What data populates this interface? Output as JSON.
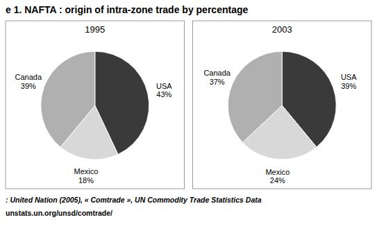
{
  "title": "e 1. NAFTA : origin of intra-zone trade by percentage",
  "chart_data": [
    {
      "type": "pie",
      "title": "1995",
      "categories": [
        "USA",
        "Mexico",
        "Canada"
      ],
      "values": [
        43,
        18,
        39
      ],
      "value_labels": [
        "43%",
        "18%",
        "39%"
      ],
      "colors": [
        "#3a3a3a",
        "#d8d8d8",
        "#b0b0b0"
      ],
      "data_labels": true
    },
    {
      "type": "pie",
      "title": "2003",
      "categories": [
        "USA",
        "Mexico",
        "Canada"
      ],
      "values": [
        39,
        24,
        37
      ],
      "value_labels": [
        "39%",
        "24%",
        "37%"
      ],
      "colors": [
        "#3a3a3a",
        "#d8d8d8",
        "#b0b0b0"
      ],
      "data_labels": true
    }
  ],
  "annotations": [
    ": United Nation (2005), « Comtrade », UN Commodity Trade Statistics Data",
    "unstats.un.org/unsd/comtrade/"
  ]
}
